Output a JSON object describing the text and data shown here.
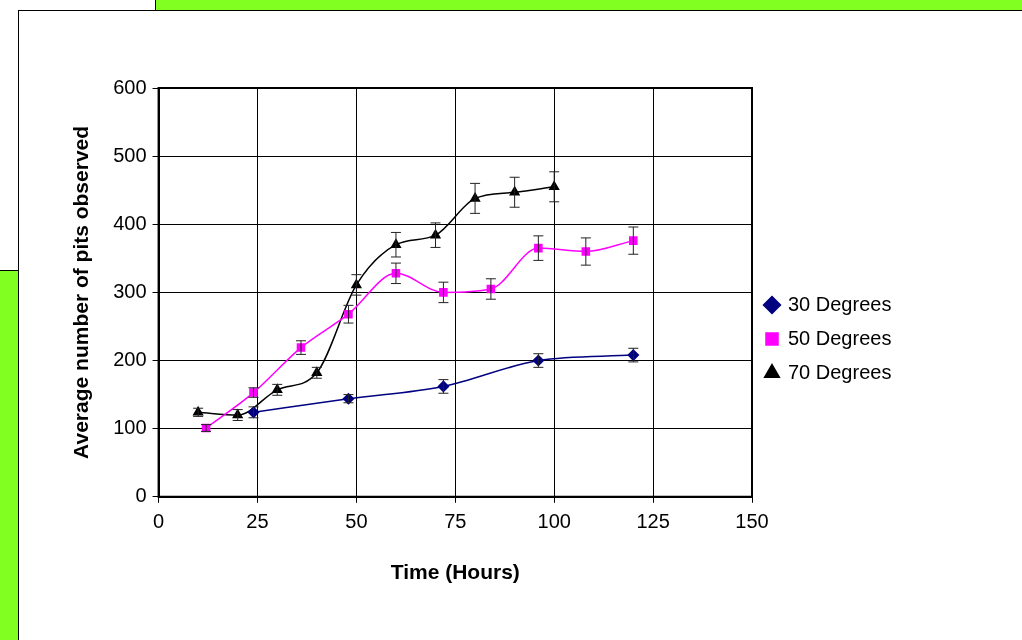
{
  "chart_data": {
    "type": "line",
    "xlabel": "Time (Hours)",
    "ylabel": "Average number of pits observed",
    "xlim": [
      0,
      150
    ],
    "xticks": [
      0,
      25,
      50,
      75,
      100,
      125,
      150
    ],
    "ylim": [
      0,
      600
    ],
    "yticks": [
      0,
      100,
      200,
      300,
      400,
      500,
      600
    ],
    "grid": true,
    "legend": "right",
    "line_style": "solid",
    "series": [
      {
        "name": "30 Degrees",
        "color": "#000080",
        "marker": "diamond",
        "x": [
          24,
          48,
          72,
          96,
          120
        ],
        "values": [
          124,
          144,
          162,
          200,
          208
        ],
        "errors": [
          8,
          6,
          10,
          10,
          10
        ]
      },
      {
        "name": "50 Degrees",
        "color": "#ff00ff",
        "marker": "square",
        "x": [
          12,
          24,
          36,
          48,
          60,
          72,
          84,
          96,
          108,
          120
        ],
        "values": [
          101,
          153,
          219,
          268,
          328,
          300,
          305,
          365,
          360,
          376
        ],
        "errors": [
          5,
          7,
          10,
          13,
          15,
          15,
          15,
          18,
          20,
          20
        ]
      },
      {
        "name": "70 Degrees",
        "color": "#000000",
        "marker": "triangle",
        "x": [
          10,
          20,
          30,
          40,
          50,
          60,
          70,
          80,
          90,
          100
        ],
        "values": [
          124,
          120,
          157,
          182,
          311,
          370,
          384,
          438,
          447,
          455
        ],
        "errors": [
          6,
          8,
          8,
          8,
          15,
          18,
          18,
          22,
          22,
          22
        ]
      }
    ]
  }
}
